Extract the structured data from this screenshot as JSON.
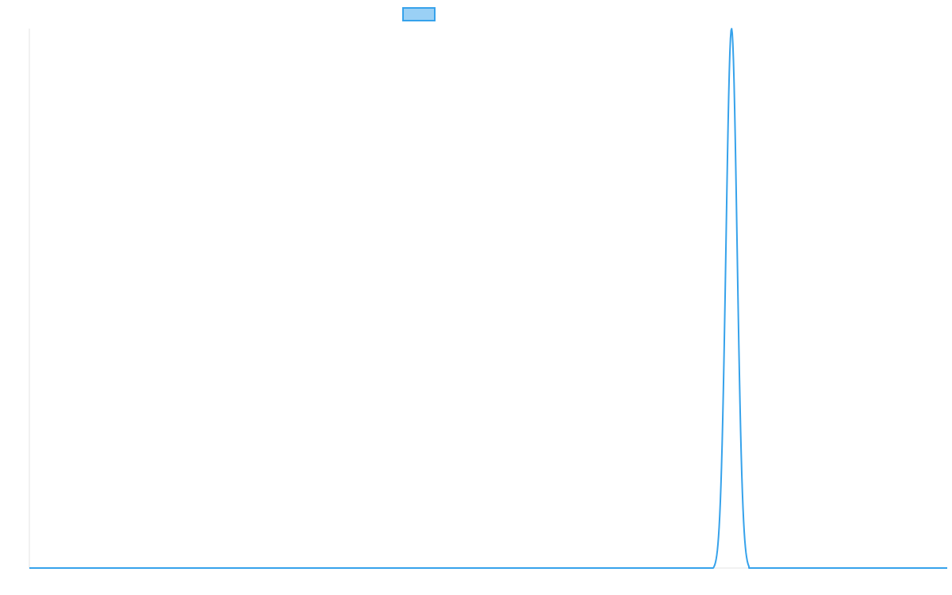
{
  "chart_data": {
    "type": "line",
    "title": "",
    "xlabel": "",
    "ylabel": "",
    "legend": {
      "placement": "top-center",
      "entries": [
        {
          "label": "",
          "color": "#36a2eb",
          "fill": "#9ad0f5"
        }
      ]
    },
    "grid": false,
    "x_range": [
      0,
      1
    ],
    "y_range": [
      0,
      1
    ],
    "series": [
      {
        "color": "#36a2eb",
        "points": [
          {
            "x": 0.0,
            "y": 0.0
          },
          {
            "x": 0.745,
            "y": 0.0
          },
          {
            "x": 0.765,
            "y": 1.0
          },
          {
            "x": 0.784,
            "y": 0.0
          },
          {
            "x": 1.0,
            "y": 0.0
          }
        ]
      }
    ]
  }
}
